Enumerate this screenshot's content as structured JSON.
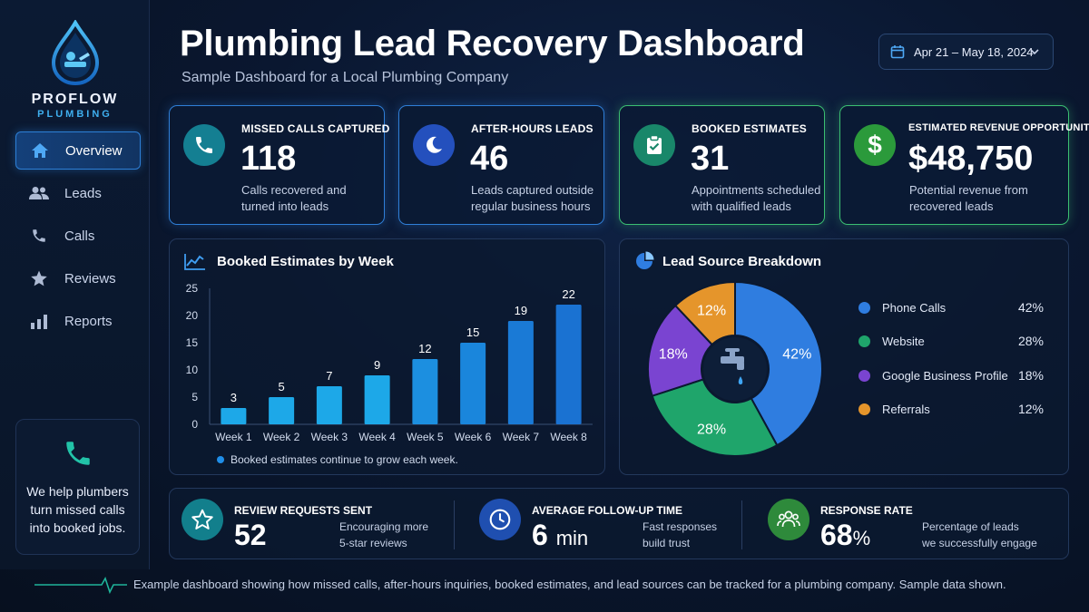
{
  "brand": {
    "name": "PROFLOW",
    "sub": "PLUMBING"
  },
  "nav": [
    {
      "label": "Overview",
      "icon": "home-icon"
    },
    {
      "label": "Leads",
      "icon": "users-icon"
    },
    {
      "label": "Calls",
      "icon": "phone-icon"
    },
    {
      "label": "Reviews",
      "icon": "star-icon"
    },
    {
      "label": "Reports",
      "icon": "bar-chart-icon"
    }
  ],
  "promo": {
    "text": "We help plumbers turn missed calls into booked jobs."
  },
  "header": {
    "title": "Plumbing Lead Recovery Dashboard",
    "subtitle": "Sample Dashboard for a Local Plumbing Company",
    "date_range": "Apr 21 – May 18, 2024"
  },
  "kpis": [
    {
      "label": "MISSED CALLS CAPTURED",
      "value": "118",
      "desc": "Calls recovered and turned into leads",
      "icon": "phone-icon",
      "color": "#1a8fa3"
    },
    {
      "label": "AFTER-HOURS LEADS",
      "value": "46",
      "desc": "Leads captured outside regular business hours",
      "icon": "moon-icon",
      "color": "#2a56c8"
    },
    {
      "label": "BOOKED ESTIMATES",
      "value": "31",
      "desc": "Appointments scheduled with qualified leads",
      "icon": "clipboard-check-icon",
      "color": "#1c8f6c"
    },
    {
      "label": "ESTIMATED REVENUE OPPORTUNITY",
      "value": "$48,750",
      "desc": "Potential revenue from recovered leads",
      "icon": "dollar-icon",
      "color": "#2f9e3f"
    }
  ],
  "bar_panel": {
    "title": "Booked Estimates by Week",
    "note": "Booked estimates continue to grow each week."
  },
  "pie_panel": {
    "title": "Lead Source Breakdown"
  },
  "chart_data": [
    {
      "type": "bar",
      "title": "Booked Estimates by Week",
      "categories": [
        "Week 1",
        "Week 2",
        "Week 3",
        "Week 4",
        "Week 5",
        "Week 6",
        "Week 7",
        "Week 8"
      ],
      "values": [
        3,
        5,
        7,
        9,
        12,
        15,
        19,
        22
      ],
      "ylim": [
        0,
        25
      ],
      "yticks": [
        "0",
        "5",
        "10",
        "15",
        "20",
        "25"
      ],
      "grid": false,
      "colors": [
        "#1da8e8",
        "#1da8e8",
        "#1da8e8",
        "#1da8e8",
        "#1c8fe0",
        "#1a86dc",
        "#1a7ad6",
        "#1a72d2"
      ]
    },
    {
      "type": "pie",
      "title": "Lead Source Breakdown",
      "categories": [
        "Phone Calls",
        "Website",
        "Google Business Profile",
        "Referrals"
      ],
      "values": [
        42,
        28,
        18,
        12
      ],
      "labels": [
        "42%",
        "28%",
        "18%",
        "12%"
      ],
      "colors": [
        "#2f7de0",
        "#1fa56b",
        "#7a44d1",
        "#e5952b"
      ],
      "legend_position": "right"
    }
  ],
  "bottom": [
    {
      "label": "REVIEW REQUESTS SENT",
      "value": "52",
      "unit": "",
      "desc1": "Encouraging more",
      "desc2": "5-star reviews",
      "icon": "star-outline-icon",
      "color": "#127f8c"
    },
    {
      "label": "AVERAGE FOLLOW-UP TIME",
      "value": "6",
      "unit": "min",
      "desc1": "Fast responses",
      "desc2": "build trust",
      "icon": "clock-icon",
      "color": "#1f4fb0"
    },
    {
      "label": "RESPONSE RATE",
      "value": "68",
      "unit": "%",
      "desc1": "Percentage of leads",
      "desc2": "we successfully engage",
      "icon": "people-icon",
      "color": "#2e8a3b"
    }
  ],
  "footer": "Example dashboard showing how missed calls, after-hours inquiries, booked estimates, and lead sources can be tracked for a plumbing company. Sample data shown."
}
